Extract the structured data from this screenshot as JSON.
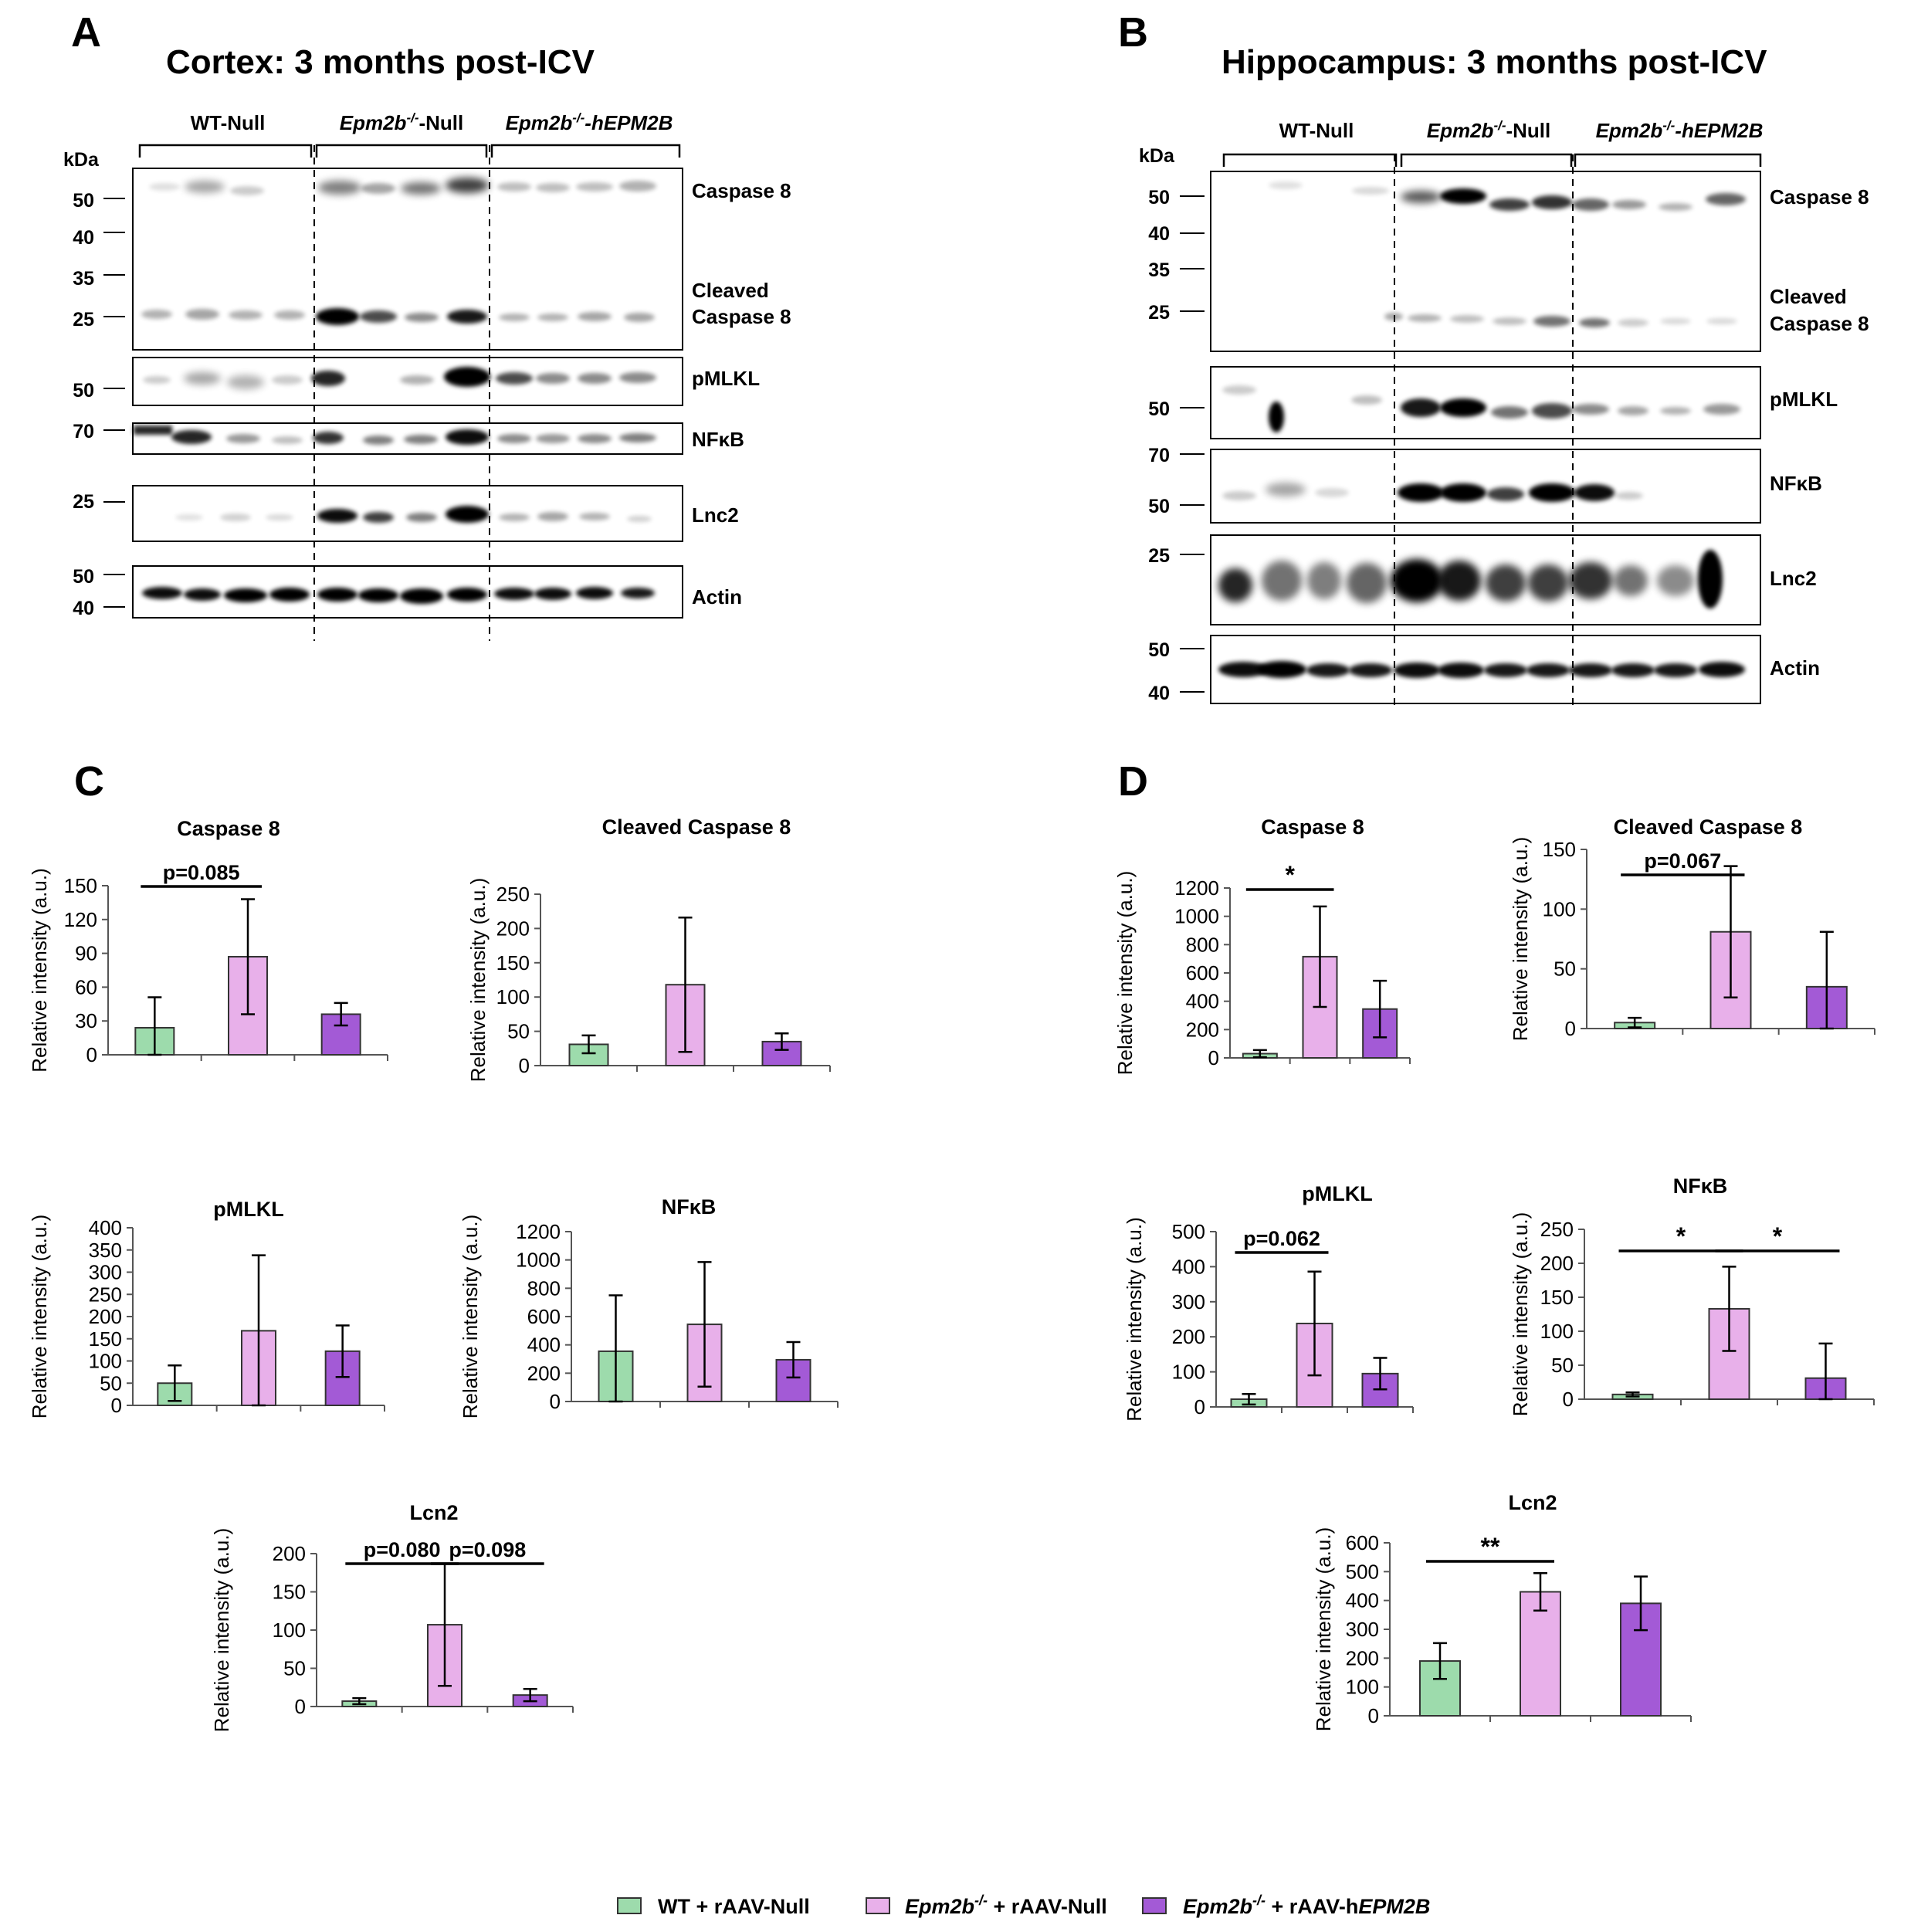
{
  "colors": {
    "wt": "#9ddbac",
    "null": "#e8b0ea",
    "hepm": "#a35ad6",
    "bar_edge": "#333333"
  },
  "panel_letters": [
    "A",
    "B",
    "C",
    "D"
  ],
  "blot_A": {
    "title": "Cortex: 3 months post-ICV",
    "kda_label": "kDa",
    "groups": [
      "WT-Null",
      "Epm2b-/--Null",
      "Epm2b-/--hEPM2B"
    ],
    "markers": [
      "50",
      "40",
      "35",
      "25",
      "50",
      "70",
      "25",
      "50",
      "40"
    ],
    "bands": [
      "Caspase 8",
      "Cleaved",
      "Caspase 8",
      "pMLKL",
      "NFκB",
      "Lnc2",
      "Actin"
    ]
  },
  "blot_B": {
    "title": "Hippocampus: 3 months post-ICV",
    "kda_label": "kDa",
    "groups": [
      "WT-Null",
      "Epm2b-/--Null",
      "Epm2b-/--hEPM2B"
    ],
    "markers": [
      "50",
      "40",
      "35",
      "25",
      "50",
      "70",
      "50",
      "25",
      "50",
      "40"
    ],
    "bands": [
      "Caspase 8",
      "Cleaved",
      "Caspase 8",
      "pMLKL",
      "NFκB",
      "Lnc2",
      "Actin"
    ]
  },
  "y_label": "Relative intensity (a.u.)",
  "legend": {
    "items": [
      {
        "key": "wt",
        "pre": "WT + rAAV-Null",
        "italic": "",
        "post": ""
      },
      {
        "key": "null",
        "pre": "",
        "italic": "Epm2b-/-",
        "post": "+ rAAV-Null"
      },
      {
        "key": "hepm",
        "pre": "",
        "italic": "Epm2b-/-",
        "post": "+ rAAV-hEPM2B"
      }
    ]
  },
  "chart_data": [
    {
      "id": "c-caspase8",
      "panel": "C",
      "type": "bar",
      "title": "Caspase 8",
      "ylabel": "Relative intensity (a.u.)",
      "ylim": [
        0,
        150
      ],
      "yticks": [
        0,
        30,
        60,
        90,
        120,
        150
      ],
      "categories": [
        "WT + rAAV-Null",
        "Epm2b-/- + rAAV-Null",
        "Epm2b-/- + rAAV-hEPM2B"
      ],
      "values": [
        24,
        87,
        36
      ],
      "errors": [
        27,
        51,
        10
      ],
      "annotations": [
        {
          "from": 0,
          "to": 1,
          "label": "p=0.085"
        }
      ]
    },
    {
      "id": "c-cleaved",
      "panel": "C",
      "type": "bar",
      "title": "Cleaved Caspase 8",
      "ylabel": "Relative intensity (a.u.)",
      "ylim": [
        0,
        250
      ],
      "yticks": [
        0,
        50,
        100,
        150,
        200,
        250
      ],
      "categories": [
        "WT + rAAV-Null",
        "Epm2b-/- + rAAV-Null",
        "Epm2b-/- + rAAV-hEPM2B"
      ],
      "values": [
        31,
        118,
        35
      ],
      "errors": [
        13,
        98,
        12
      ],
      "annotations": []
    },
    {
      "id": "c-pmlkl",
      "panel": "C",
      "type": "bar",
      "title": "pMLKL",
      "ylabel": "Relative intensity (a.u.)",
      "ylim": [
        0,
        400
      ],
      "yticks": [
        0,
        50,
        100,
        150,
        200,
        250,
        300,
        350,
        400
      ],
      "categories": [
        "WT + rAAV-Null",
        "Epm2b-/- + rAAV-Null",
        "Epm2b-/- + rAAV-hEPM2B"
      ],
      "values": [
        50,
        168,
        122
      ],
      "errors": [
        40,
        170,
        58
      ],
      "annotations": []
    },
    {
      "id": "c-nfkb",
      "panel": "C",
      "type": "bar",
      "title": "NFκB",
      "ylabel": "Relative intensity (a.u.)",
      "ylim": [
        0,
        1200
      ],
      "yticks": [
        0,
        200,
        400,
        600,
        800,
        1000,
        1200
      ],
      "categories": [
        "WT + rAAV-Null",
        "Epm2b-/- + rAAV-Null",
        "Epm2b-/- + rAAV-hEPM2B"
      ],
      "values": [
        355,
        545,
        295
      ],
      "errors": [
        395,
        440,
        125
      ],
      "annotations": []
    },
    {
      "id": "c-lcn2",
      "panel": "C",
      "type": "bar",
      "title": "Lcn2",
      "ylabel": "Relative intensity (a.u.)",
      "ylim": [
        0,
        200
      ],
      "yticks": [
        0,
        50,
        100,
        150,
        200
      ],
      "categories": [
        "WT + rAAV-Null",
        "Epm2b-/- + rAAV-Null",
        "Epm2b-/- + rAAV-hEPM2B"
      ],
      "values": [
        7,
        107,
        15
      ],
      "errors": [
        4,
        80,
        8
      ],
      "annotations": [
        {
          "from": 0,
          "to": 1,
          "label": "p=0.080"
        },
        {
          "from": 1,
          "to": 2,
          "label": "p=0.098"
        }
      ]
    },
    {
      "id": "d-caspase8",
      "panel": "D",
      "type": "bar",
      "title": "Caspase 8",
      "ylabel": "Relative intensity (a.u.)",
      "ylim": [
        0,
        1200
      ],
      "yticks": [
        0,
        200,
        400,
        600,
        800,
        1000,
        1200
      ],
      "categories": [
        "WT + rAAV-Null",
        "Epm2b-/- + rAAV-Null",
        "Epm2b-/- + rAAV-hEPM2B"
      ],
      "values": [
        30,
        715,
        345
      ],
      "errors": [
        25,
        355,
        200
      ],
      "annotations": [
        {
          "from": 0,
          "to": 1,
          "label": "*"
        }
      ]
    },
    {
      "id": "d-cleaved",
      "panel": "D",
      "type": "bar",
      "title": "Cleaved Caspase 8",
      "ylabel": "Relative intensity (a.u.)",
      "ylim": [
        0,
        150
      ],
      "yticks": [
        0,
        50,
        100,
        150
      ],
      "categories": [
        "WT + rAAV-Null",
        "Epm2b-/- + rAAV-Null",
        "Epm2b-/- + rAAV-hEPM2B"
      ],
      "values": [
        5,
        81,
        35
      ],
      "errors": [
        4,
        55,
        46
      ],
      "annotations": [
        {
          "from": 0,
          "to": 1,
          "label": "p=0.067"
        }
      ]
    },
    {
      "id": "d-pmlkl",
      "panel": "D",
      "type": "bar",
      "title": "pMLKL",
      "ylabel": "Relative intensity (a.u.)",
      "ylim": [
        0,
        500
      ],
      "yticks": [
        0,
        100,
        200,
        300,
        400,
        500
      ],
      "categories": [
        "WT + rAAV-Null",
        "Epm2b-/- + rAAV-Null",
        "Epm2b-/- + rAAV-hEPM2B"
      ],
      "values": [
        22,
        238,
        95
      ],
      "errors": [
        15,
        148,
        45
      ],
      "annotations": [
        {
          "from": 0,
          "to": 1,
          "label": "p=0.062"
        }
      ]
    },
    {
      "id": "d-nfkb",
      "panel": "D",
      "type": "bar",
      "title": "NFκB",
      "ylabel": "Relative intensity (a.u.)",
      "ylim": [
        0,
        250
      ],
      "yticks": [
        0,
        50,
        100,
        150,
        200,
        250
      ],
      "categories": [
        "WT + rAAV-Null",
        "Epm2b-/- + rAAV-Null",
        "Epm2b-/- + rAAV-hEPM2B"
      ],
      "values": [
        7,
        133,
        31
      ],
      "errors": [
        3,
        62,
        51
      ],
      "annotations": [
        {
          "from": 0,
          "to": 1,
          "label": "*"
        },
        {
          "from": 1,
          "to": 2,
          "label": "*"
        }
      ]
    },
    {
      "id": "d-lcn2",
      "panel": "D",
      "type": "bar",
      "title": "Lcn2",
      "ylabel": "Relative intensity (a.u.)",
      "ylim": [
        0,
        600
      ],
      "yticks": [
        0,
        100,
        200,
        300,
        400,
        500,
        600
      ],
      "categories": [
        "WT + rAAV-Null",
        "Epm2b-/- + rAAV-Null",
        "Epm2b-/- + rAAV-hEPM2B"
      ],
      "values": [
        190,
        430,
        390
      ],
      "errors": [
        62,
        65,
        93
      ],
      "annotations": [
        {
          "from": 0,
          "to": 1,
          "label": "**"
        }
      ]
    }
  ]
}
